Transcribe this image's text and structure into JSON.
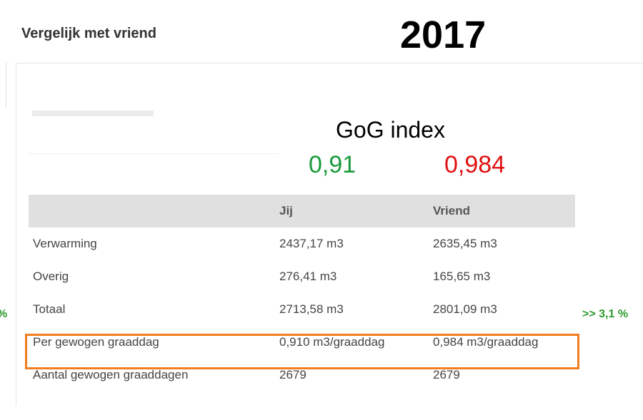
{
  "header": {
    "title": "Vergelijk met vriend",
    "year": "2017"
  },
  "gog": {
    "label": "GoG index",
    "values": [
      "0,91",
      "0,984"
    ]
  },
  "table": {
    "columns": [
      "Jij",
      "Vriend"
    ],
    "rows": [
      [
        "Verwarming",
        "2437,17 m3",
        "2635,45 m3"
      ],
      [
        "Overig",
        "276,41 m3",
        "165,65 m3"
      ],
      [
        "Totaal",
        "2713,58 m3",
        "2801,09 m3"
      ],
      [
        "Per gewogen graaddag",
        "0,910 m3/graaddag",
        "0,984 m3/graaddag"
      ],
      [
        "Aantal gewogen graaddagen",
        "2679",
        "2679"
      ]
    ]
  },
  "side": {
    "left": "%",
    "right": ">> 3,1 %"
  }
}
